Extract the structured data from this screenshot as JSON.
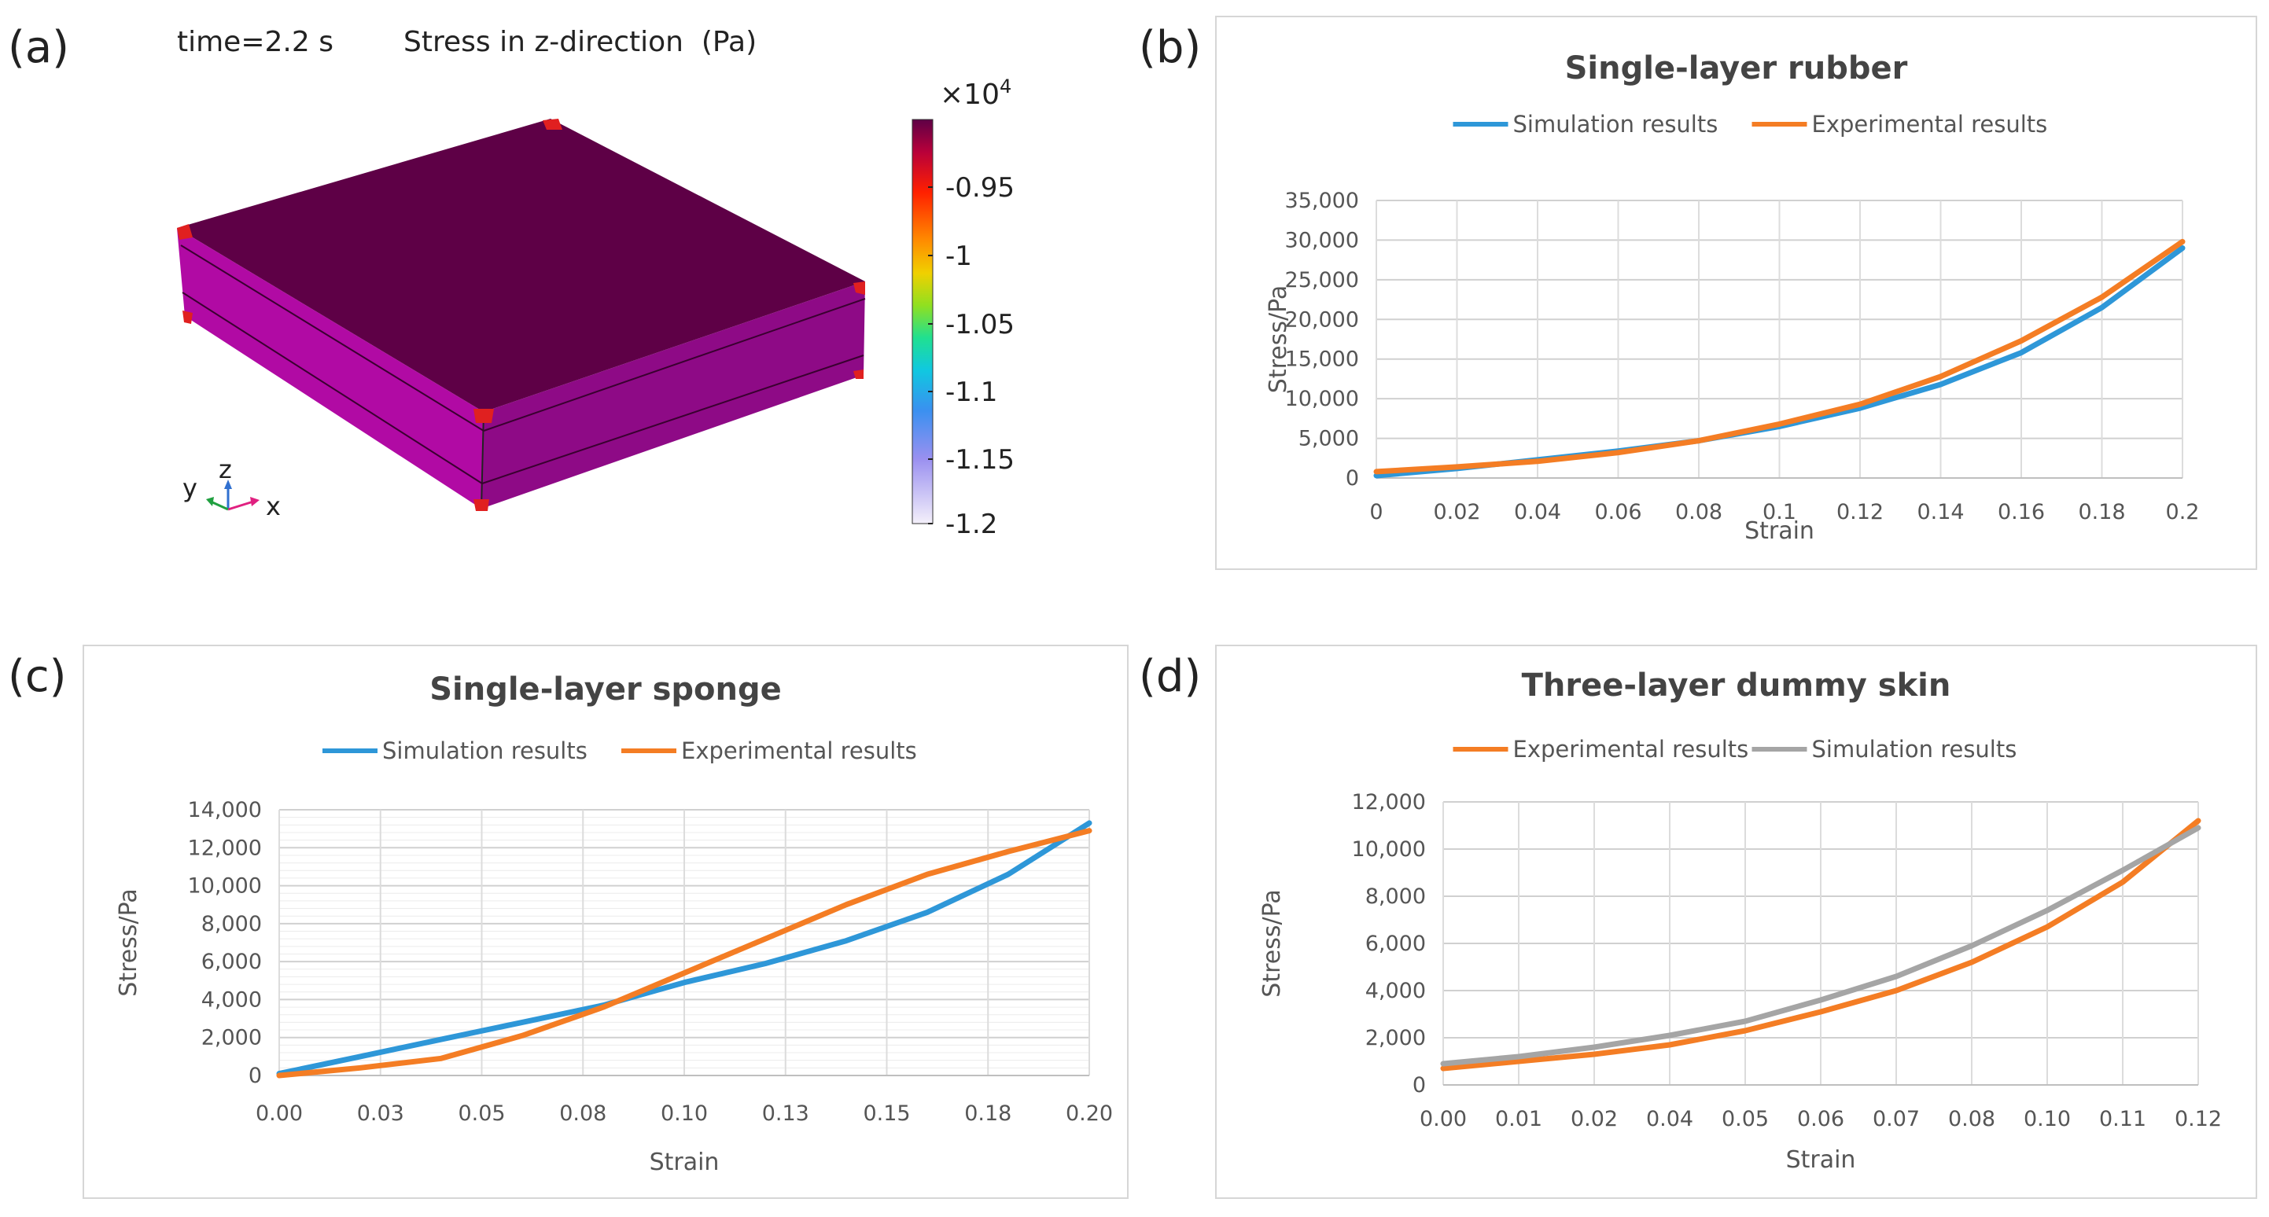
{
  "panels": {
    "a": "(a)",
    "b": "(b)",
    "c": "(c)",
    "d": "(d)"
  },
  "sim": {
    "time_label": "time=2.2 s",
    "quantity_label": "Stress in z-direction  (Pa)",
    "colorbar": {
      "multiplier": "×10",
      "exponent": "4",
      "ticks": [
        "-0.95",
        "-1",
        "-1.05",
        "-1.1",
        "-1.15",
        "-1.2"
      ]
    },
    "axes": {
      "x": "x",
      "y": "y",
      "z": "z"
    },
    "colors": {
      "top": "#5e0046",
      "side_front": "#b000a8",
      "side_right": "#8a0080",
      "corner": "#e02020"
    }
  },
  "chart_data": [
    {
      "id": "b",
      "type": "line",
      "title": "Single-layer rubber",
      "xlabel": "Strain",
      "ylabel": "Stress/Pa",
      "xlim": [
        0,
        0.2
      ],
      "ylim": [
        0,
        35000
      ],
      "x_ticks": [
        "0",
        "0.02",
        "0.04",
        "0.06",
        "0.08",
        "0.1",
        "0.12",
        "0.14",
        "0.16",
        "0.18",
        "0.2"
      ],
      "y_ticks": [
        "0",
        "5,000",
        "10,000",
        "15,000",
        "20,000",
        "25,000",
        "30,000",
        "35,000"
      ],
      "legend_position": "top",
      "series": [
        {
          "name": "Simulation results",
          "color": "#2e97d8",
          "x": [
            0,
            0.02,
            0.04,
            0.06,
            0.08,
            0.1,
            0.12,
            0.14,
            0.16,
            0.18,
            0.2
          ],
          "values": [
            300,
            1200,
            2300,
            3400,
            4700,
            6500,
            8800,
            11800,
            15800,
            21500,
            29000
          ]
        },
        {
          "name": "Experimental results",
          "color": "#f47d24",
          "x": [
            0,
            0.02,
            0.04,
            0.06,
            0.08,
            0.1,
            0.12,
            0.14,
            0.16,
            0.18,
            0.2
          ],
          "values": [
            800,
            1400,
            2100,
            3200,
            4700,
            6800,
            9300,
            12800,
            17300,
            22800,
            29800
          ]
        }
      ]
    },
    {
      "id": "c",
      "type": "line",
      "title": "Single-layer sponge",
      "xlabel": "Strain",
      "ylabel": "Stress/Pa",
      "xlim": [
        0,
        0.2
      ],
      "ylim": [
        0,
        14000
      ],
      "x_ticks": [
        "0.00",
        "0.03",
        "0.05",
        "0.08",
        "0.10",
        "0.13",
        "0.15",
        "0.18",
        "0.20"
      ],
      "y_ticks": [
        "0",
        "2,000",
        "4,000",
        "6,000",
        "8,000",
        "10,000",
        "12,000",
        "14,000"
      ],
      "legend_position": "top",
      "series": [
        {
          "name": "Simulation results",
          "color": "#2e97d8",
          "x": [
            0,
            0.02,
            0.04,
            0.06,
            0.08,
            0.1,
            0.12,
            0.14,
            0.16,
            0.18,
            0.2
          ],
          "values": [
            100,
            1000,
            1900,
            2800,
            3700,
            4900,
            5900,
            7100,
            8600,
            10600,
            13300
          ]
        },
        {
          "name": "Experimental results",
          "color": "#f47d24",
          "x": [
            0,
            0.02,
            0.04,
            0.06,
            0.08,
            0.1,
            0.12,
            0.14,
            0.16,
            0.18,
            0.2
          ],
          "values": [
            0,
            400,
            900,
            2100,
            3600,
            5400,
            7200,
            9000,
            10600,
            11800,
            12900
          ]
        }
      ]
    },
    {
      "id": "d",
      "type": "line",
      "title": "Three-layer dummy skin",
      "xlabel": "Strain",
      "ylabel": "Stress/Pa",
      "xlim": [
        0,
        0.12
      ],
      "ylim": [
        0,
        12000
      ],
      "x_ticks": [
        "0.00",
        "0.01",
        "0.02",
        "0.04",
        "0.05",
        "0.06",
        "0.07",
        "0.08",
        "0.10",
        "0.11",
        "0.12"
      ],
      "y_ticks": [
        "0",
        "2,000",
        "4,000",
        "6,000",
        "8,000",
        "10,000",
        "12,000"
      ],
      "legend_position": "top",
      "series": [
        {
          "name": "Experimental results",
          "color": "#f47d24",
          "x": [
            0,
            0.012,
            0.024,
            0.036,
            0.048,
            0.06,
            0.072,
            0.084,
            0.096,
            0.108,
            0.12
          ],
          "values": [
            700,
            1000,
            1300,
            1700,
            2300,
            3100,
            4000,
            5200,
            6700,
            8600,
            11200
          ]
        },
        {
          "name": "Simulation results",
          "color": "#a5a5a5",
          "x": [
            0,
            0.012,
            0.024,
            0.036,
            0.048,
            0.06,
            0.072,
            0.084,
            0.096,
            0.108,
            0.12
          ],
          "values": [
            900,
            1200,
            1600,
            2100,
            2700,
            3600,
            4600,
            5900,
            7400,
            9100,
            10900
          ]
        }
      ]
    }
  ]
}
